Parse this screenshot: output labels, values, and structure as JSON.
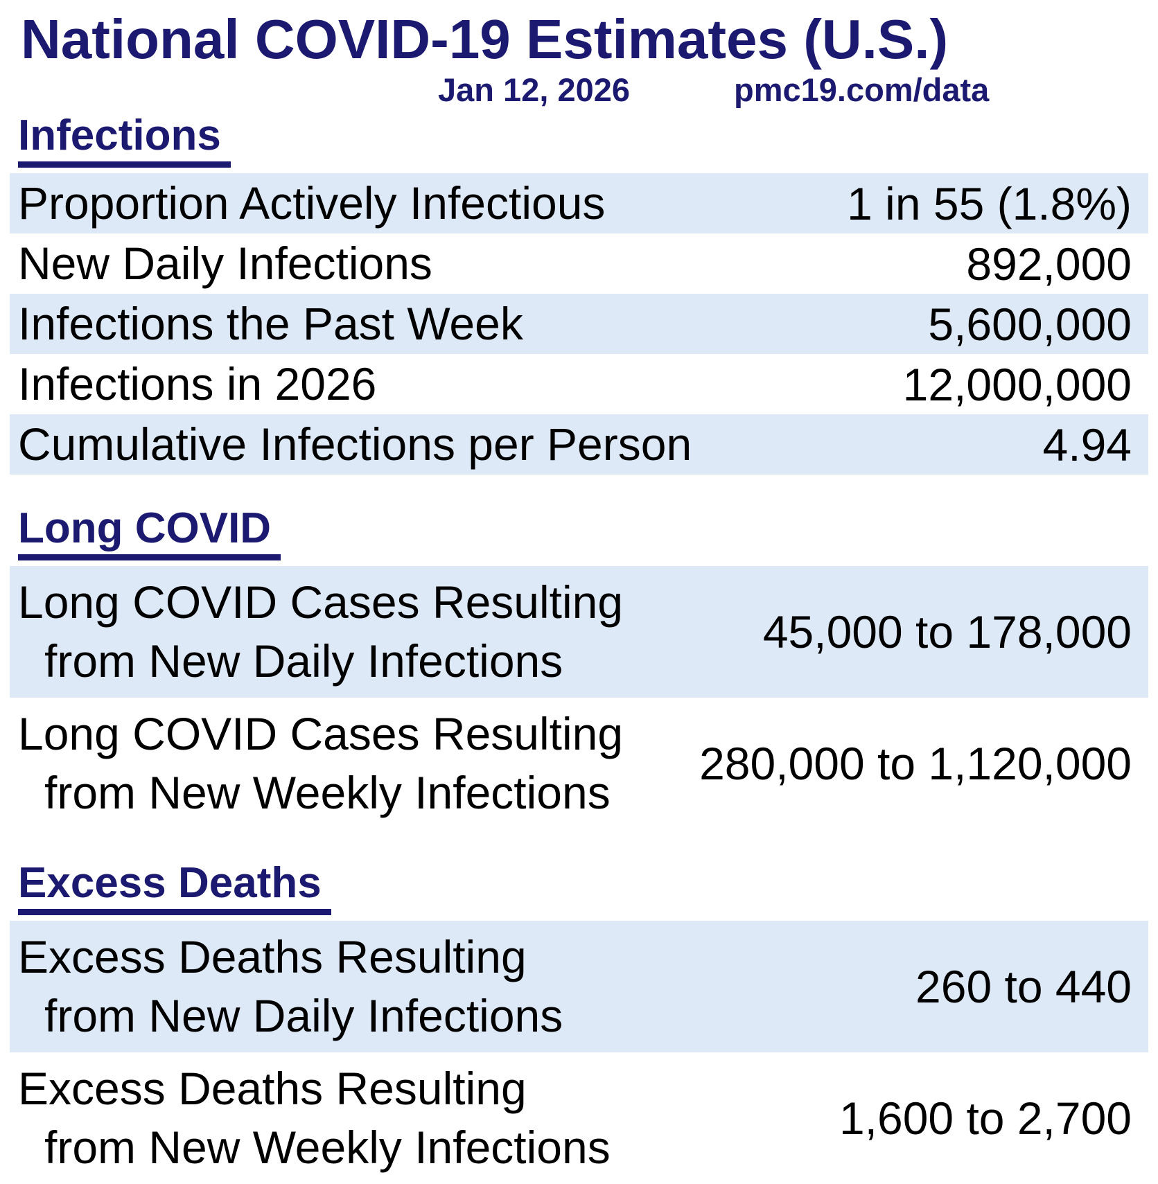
{
  "header": {
    "title": "National COVID-19 Estimates (U.S.)",
    "date": "Jan 12, 2026",
    "site": "pmc19.com/data"
  },
  "colors": {
    "heading_navy": "#1b1a70",
    "row_shade_blue": "#dde9f6",
    "body_text": "#000000",
    "background": "#ffffff"
  },
  "sections": [
    {
      "heading": "Infections",
      "rows": [
        {
          "lines": [
            "Proportion Actively Infectious"
          ],
          "value": "1 in 55 (1.8%)"
        },
        {
          "lines": [
            "New Daily Infections"
          ],
          "value": "892,000"
        },
        {
          "lines": [
            "Infections the Past Week"
          ],
          "value": "5,600,000"
        },
        {
          "lines": [
            "Infections in 2026"
          ],
          "value": "12,000,000"
        },
        {
          "lines": [
            "Cumulative Infections per Person"
          ],
          "value": "4.94"
        }
      ]
    },
    {
      "heading": "Long COVID",
      "rows": [
        {
          "lines": [
            "Long COVID Cases Resulting",
            "from New Daily Infections"
          ],
          "value": "45,000 to 178,000"
        },
        {
          "lines": [
            "Long COVID Cases Resulting",
            "from New Weekly Infections"
          ],
          "value": "280,000 to 1,120,000"
        }
      ]
    },
    {
      "heading": "Excess Deaths",
      "rows": [
        {
          "lines": [
            "Excess Deaths Resulting",
            "from New Daily Infections"
          ],
          "value": "260 to 440"
        },
        {
          "lines": [
            "Excess Deaths Resulting",
            "from New Weekly Infections"
          ],
          "value": "1,600 to 2,700"
        }
      ]
    }
  ]
}
